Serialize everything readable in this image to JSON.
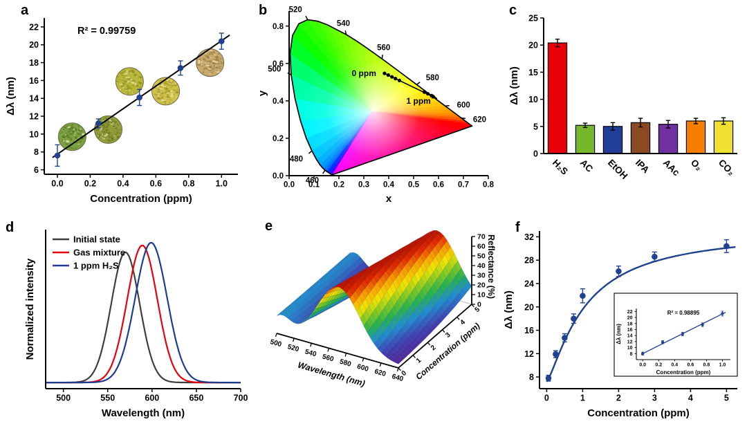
{
  "panels": {
    "a": "a",
    "b": "b",
    "c": "c",
    "d": "d",
    "e": "e",
    "f": "f"
  },
  "chart_data": [
    {
      "panel": "a",
      "type": "scatter",
      "annotation": "R² = 0.99759",
      "xlabel": "Concentration (ppm)",
      "ylabel": "Δλ (nm)",
      "xlim": [
        -0.08,
        1.1
      ],
      "ylim": [
        5.5,
        23
      ],
      "xticks": [
        0.0,
        0.2,
        0.4,
        0.6,
        0.8,
        1.0
      ],
      "yticks": [
        6,
        8,
        10,
        12,
        14,
        16,
        18,
        20,
        22
      ],
      "x": [
        0.0,
        0.25,
        0.5,
        0.75,
        1.0
      ],
      "y": [
        7.6,
        11.2,
        14.1,
        17.4,
        20.4
      ],
      "yerr": [
        1.2,
        0.5,
        0.9,
        0.8,
        0.9
      ],
      "fit": {
        "type": "linear",
        "slope": 12.7,
        "intercept": 7.75
      },
      "marker_color": "#1f418f",
      "micrographs": [
        {
          "x": 0.09,
          "y": 9.7,
          "base": "#7aa03f",
          "speckle": "#4e7020"
        },
        {
          "x": 0.31,
          "y": 10.5,
          "base": "#8f9c38",
          "speckle": "#5c6a1a"
        },
        {
          "x": 0.44,
          "y": 15.9,
          "base": "#b9b83a",
          "speckle": "#8a8a1e"
        },
        {
          "x": 0.66,
          "y": 14.8,
          "base": "#cfc04a",
          "speckle": "#9a8f28"
        },
        {
          "x": 0.93,
          "y": 18.0,
          "base": "#c7a96b",
          "speckle": "#8f7340"
        }
      ]
    },
    {
      "panel": "b",
      "type": "chromaticity",
      "xlabel": "x",
      "ylabel": "y",
      "xlim": [
        0,
        0.8
      ],
      "ylim": [
        0,
        0.88
      ],
      "xticks": [
        0.0,
        0.1,
        0.2,
        0.3,
        0.4,
        0.5,
        0.6,
        0.7,
        0.8
      ],
      "yticks": [
        0.0,
        0.2,
        0.4,
        0.6,
        0.8
      ],
      "wavelength_labels": [
        {
          "wl": "460",
          "x": 0.144,
          "y": 0.0297
        },
        {
          "wl": "480",
          "x": 0.0913,
          "y": 0.1327
        },
        {
          "wl": "500",
          "x": 0.0082,
          "y": 0.5384
        },
        {
          "wl": "520",
          "x": 0.0743,
          "y": 0.8338
        },
        {
          "wl": "540",
          "x": 0.2296,
          "y": 0.7543
        },
        {
          "wl": "560",
          "x": 0.3731,
          "y": 0.6245
        },
        {
          "wl": "580",
          "x": 0.5125,
          "y": 0.4866
        },
        {
          "wl": "600",
          "x": 0.627,
          "y": 0.3725
        },
        {
          "wl": "620",
          "x": 0.6915,
          "y": 0.3083
        }
      ],
      "points": [
        [
          0.383,
          0.547
        ],
        [
          0.398,
          0.538
        ],
        [
          0.413,
          0.528
        ],
        [
          0.427,
          0.519
        ],
        [
          0.443,
          0.509
        ],
        [
          0.543,
          0.447
        ],
        [
          0.557,
          0.438
        ],
        [
          0.572,
          0.428
        ]
      ],
      "start_label": "0 ppm",
      "end_label": "1 ppm",
      "label_color": "#1a4fa0"
    },
    {
      "panel": "c",
      "type": "bar",
      "ylabel": "Δλ (nm)",
      "ylim": [
        0,
        25
      ],
      "yticks": [
        0,
        5,
        10,
        15,
        20,
        25
      ],
      "categories": [
        "H₂S",
        "AC",
        "EtOH",
        "IPA",
        "AAc",
        "O₂",
        "CO₂"
      ],
      "values": [
        20.4,
        5.2,
        5.0,
        5.7,
        5.4,
        6.0,
        6.0
      ],
      "errors": [
        0.7,
        0.4,
        0.7,
        0.8,
        0.7,
        0.5,
        0.6
      ],
      "colors": [
        "#e8000b",
        "#76b82a",
        "#1f3d99",
        "#8c4a21",
        "#7030a0",
        "#f57e00",
        "#f0e130"
      ]
    },
    {
      "panel": "d",
      "type": "spectra",
      "xlabel": "Wavelength (nm)",
      "ylabel": "Normalized intensity",
      "xlim": [
        480,
        700
      ],
      "xticks": [
        500,
        550,
        600,
        650,
        700
      ],
      "baseline": 0.045,
      "series": [
        {
          "name": "Initial state",
          "color": "#3f3f3f",
          "center": 570,
          "sigma": 16,
          "amp": 0.95
        },
        {
          "name": "Gas mixture",
          "color": "#e8000b",
          "center": 589,
          "sigma": 17,
          "amp": 1.0
        },
        {
          "name": "1 ppm H₂S",
          "color": "#1b3d8f",
          "center": 599,
          "sigma": 18,
          "amp": 1.02
        }
      ]
    },
    {
      "panel": "e",
      "type": "surface3d",
      "xlabel": "Wavelength (nm)",
      "ylabel": "Concentration (ppm)",
      "zlabel": "Reflectance (%)",
      "wavelength_range": [
        500,
        640
      ],
      "wavelength_ticks": [
        500,
        520,
        540,
        560,
        580,
        600,
        620,
        640
      ],
      "concentration_range": [
        0,
        5
      ],
      "concentration_ticks": [
        0,
        1,
        2,
        3,
        4,
        5
      ],
      "z_range": [
        0,
        70
      ],
      "z_ticks": [
        0,
        10,
        20,
        30,
        40,
        50,
        60,
        70
      ],
      "surface": {
        "base": 3,
        "amp": 63,
        "sigma": 24,
        "center0": 571,
        "shift": 5.8,
        "secondary": {
          "center": 505,
          "amp": 16,
          "sigma": 11
        }
      }
    },
    {
      "panel": "f",
      "type": "scatter",
      "xlabel": "Concentration (ppm)",
      "ylabel": "Δλ (nm)",
      "xlim": [
        -0.2,
        5.3
      ],
      "ylim": [
        6,
        33
      ],
      "xticks": [
        0,
        1,
        2,
        3,
        4,
        5
      ],
      "yticks": [
        8,
        12,
        16,
        20,
        24,
        28,
        32
      ],
      "x": [
        0.05,
        0.25,
        0.5,
        0.75,
        1.0,
        2.0,
        3.0,
        5.0
      ],
      "y": [
        7.8,
        11.9,
        14.7,
        18.0,
        21.9,
        26.1,
        28.6,
        30.4
      ],
      "yerr": [
        0.5,
        0.6,
        0.7,
        0.8,
        1.2,
        0.9,
        0.8,
        1.1
      ],
      "fit": {
        "type": "hill",
        "y0": 7.2,
        "a": 26.0,
        "k": 1.1,
        "n": 1.3
      },
      "marker_color": "#1f418f",
      "inset": {
        "annotation": "R² = 0.98895",
        "xlabel": "Concentration (ppm)",
        "ylabel": "Δλ (nm)",
        "xlim": [
          -0.08,
          1.1
        ],
        "ylim": [
          6,
          23
        ],
        "xticks": [
          0.0,
          0.2,
          0.4,
          0.6,
          0.8,
          1.0
        ],
        "yticks": [
          8,
          10,
          12,
          14,
          16,
          18,
          20,
          22
        ],
        "x": [
          0.0,
          0.25,
          0.5,
          0.75,
          1.0
        ],
        "y": [
          8.0,
          11.8,
          14.5,
          17.6,
          21.3
        ],
        "yerr": [
          0.5,
          0.5,
          0.6,
          0.6,
          0.8
        ],
        "fit": {
          "type": "linear",
          "slope": 13.2,
          "intercept": 8.0
        }
      }
    }
  ]
}
